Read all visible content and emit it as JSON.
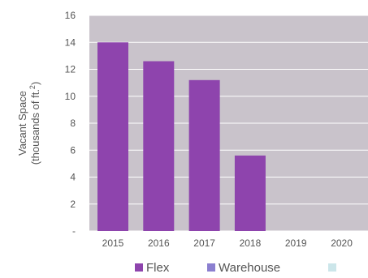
{
  "chart_data": {
    "type": "bar",
    "title": "",
    "ylabel": "Vacant Space",
    "ylabel_units_prefix": "(thousands of ft.",
    "ylabel_units_sup": "2",
    "ylabel_units_suffix": ")",
    "ylim": [
      0,
      16
    ],
    "yticks": [
      "-",
      "2",
      "4",
      "6",
      "8",
      "10",
      "12",
      "14",
      "16"
    ],
    "categories": [
      "2015",
      "2016",
      "2017",
      "2018",
      "2019",
      "2020"
    ],
    "series": [
      {
        "name": "Flex",
        "color": "#8e44ad",
        "values": [
          14.0,
          12.6,
          11.2,
          5.6,
          0,
          0
        ]
      },
      {
        "name": "Warehouse",
        "color": "#8b7fd0",
        "values": [
          0,
          0,
          0,
          0,
          0,
          0
        ]
      },
      {
        "name": "",
        "color": "#cce6ea",
        "values": [
          0,
          0,
          0,
          0,
          0,
          0
        ]
      }
    ],
    "plot_background": "#c9c3cb",
    "grid": true,
    "legend_position": "bottom"
  }
}
